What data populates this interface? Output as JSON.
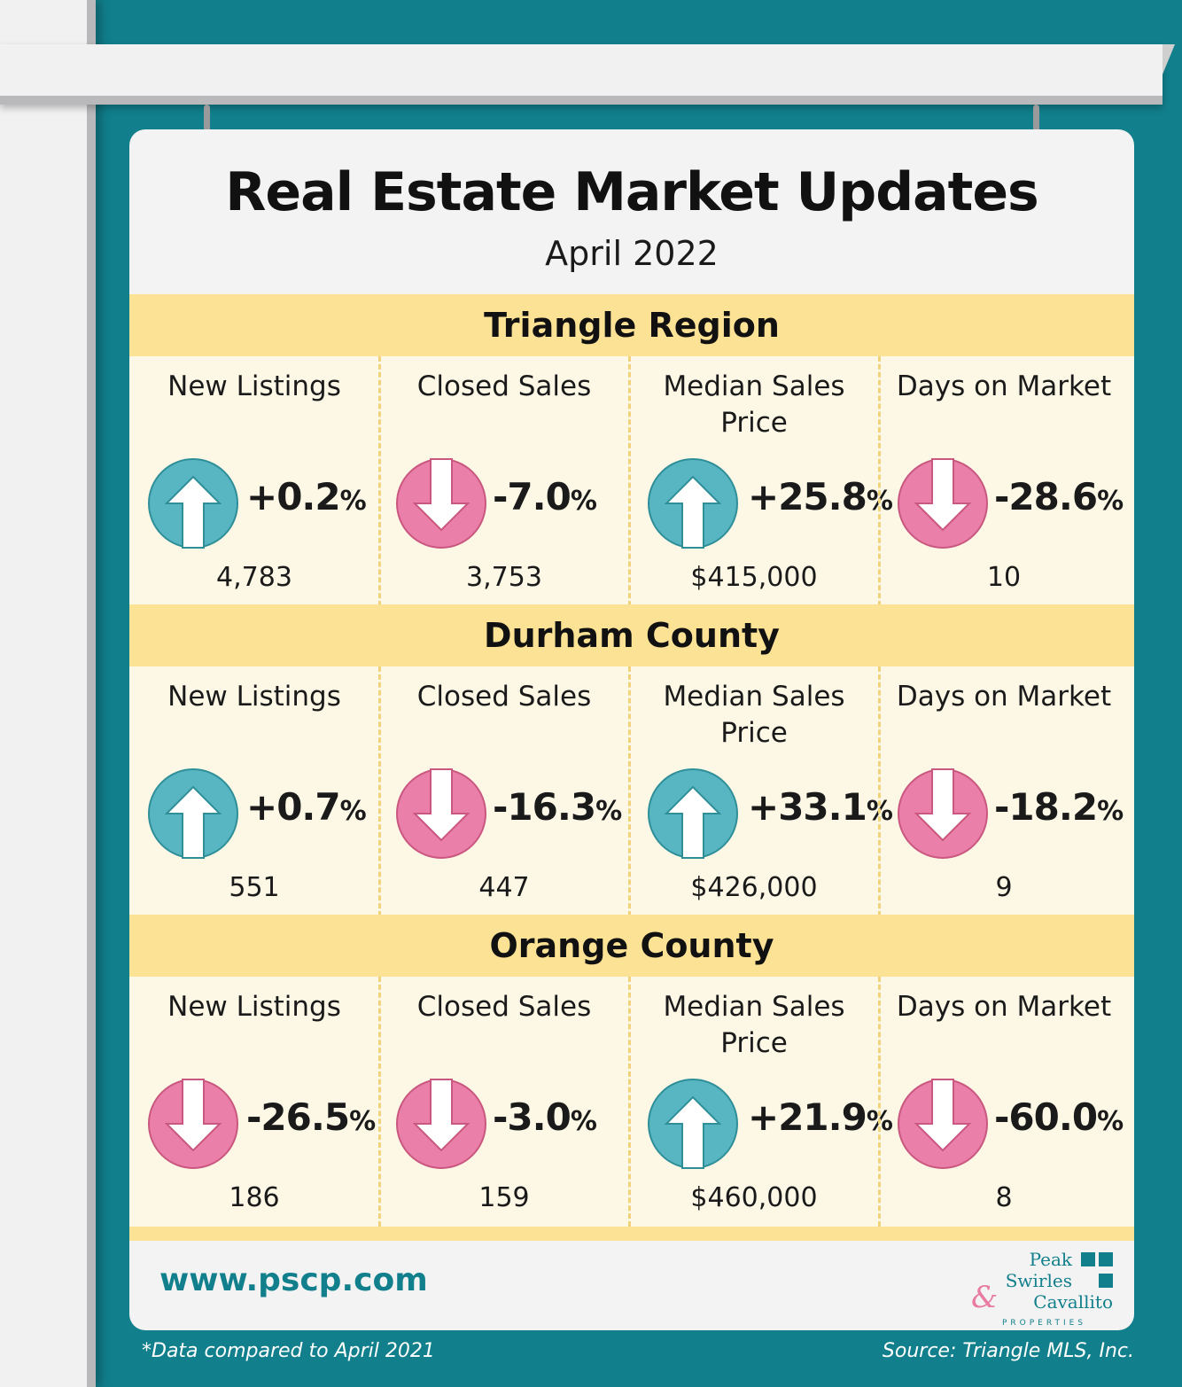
{
  "title": "Real Estate Market Updates",
  "subtitle": "April 2022",
  "colors": {
    "up": "#57b6c1",
    "down": "#ea7fa9",
    "band": "#fce295",
    "brand": "#117f8c"
  },
  "regions": [
    {
      "name": "Triangle Region",
      "metrics": [
        {
          "label": "New Listings",
          "direction": "up",
          "change": "+0.2",
          "value": "4,783"
        },
        {
          "label": "Closed Sales",
          "direction": "down",
          "change": "-7.0",
          "value": "3,753"
        },
        {
          "label": "Median Sales Price",
          "direction": "up",
          "change": "+25.8",
          "value": "$415,000"
        },
        {
          "label": "Days on Market",
          "direction": "down",
          "change": "-28.6",
          "value": "10"
        }
      ]
    },
    {
      "name": "Durham County",
      "metrics": [
        {
          "label": "New Listings",
          "direction": "up",
          "change": "+0.7",
          "value": "551"
        },
        {
          "label": "Closed Sales",
          "direction": "down",
          "change": "-16.3",
          "value": "447"
        },
        {
          "label": "Median Sales Price",
          "direction": "up",
          "change": "+33.1",
          "value": "$426,000"
        },
        {
          "label": "Days on Market",
          "direction": "down",
          "change": "-18.2",
          "value": "9"
        }
      ]
    },
    {
      "name": "Orange County",
      "metrics": [
        {
          "label": "New Listings",
          "direction": "down",
          "change": "-26.5",
          "value": "186"
        },
        {
          "label": "Closed Sales",
          "direction": "down",
          "change": "-3.0",
          "value": "159"
        },
        {
          "label": "Median Sales Price",
          "direction": "up",
          "change": "+21.9",
          "value": "$460,000"
        },
        {
          "label": "Days on Market",
          "direction": "down",
          "change": "-60.0",
          "value": "8"
        }
      ]
    }
  ],
  "percent_symbol": "%",
  "website": "www.pscp.com",
  "logo": {
    "line1": "Peak",
    "line2": "Swirles",
    "line3": "Cavallito",
    "amp": "&",
    "sub": "PROPERTIES"
  },
  "footnote": "*Data compared to April 2021",
  "source": "Source: Triangle MLS, Inc."
}
